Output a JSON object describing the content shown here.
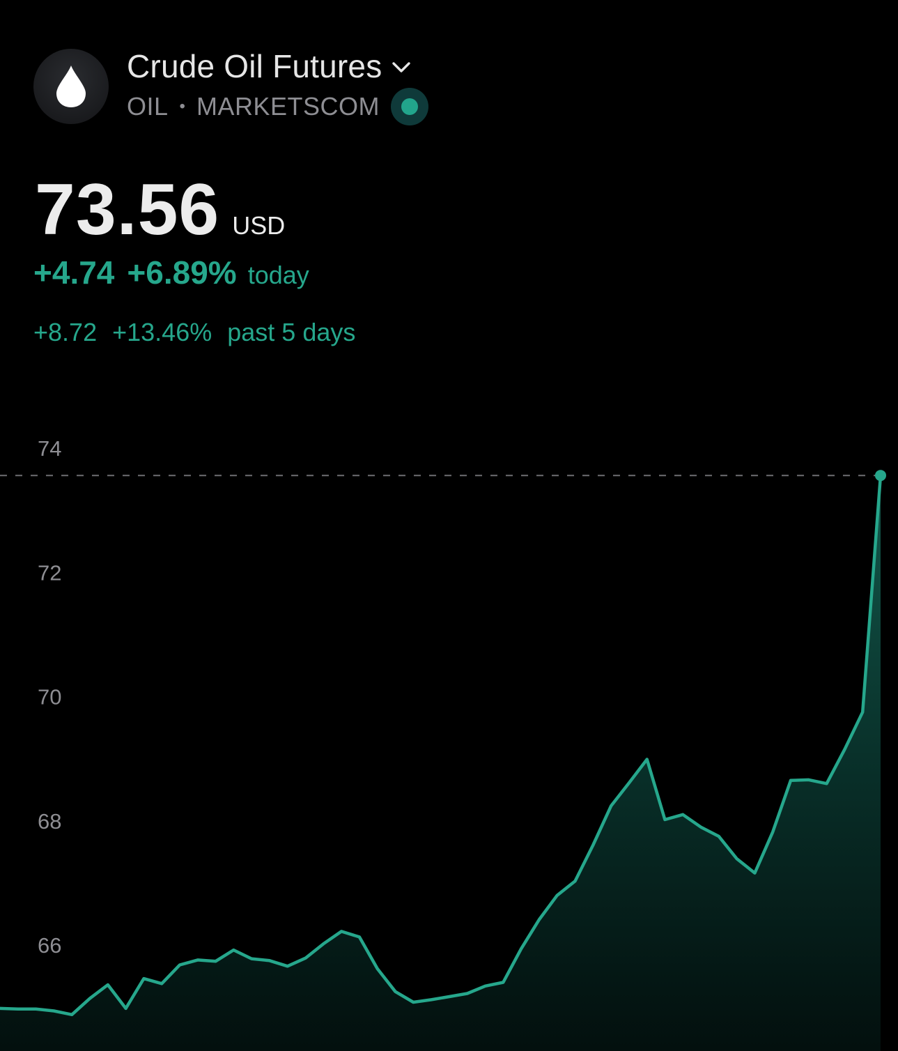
{
  "header": {
    "title": "Crude Oil Futures",
    "symbol": "OIL",
    "separator": "•",
    "exchange": "MARKETSCOM",
    "logo_icon": "oil-drop-icon",
    "status_icon": "market-open-dot-icon",
    "status_color": "#22a58c"
  },
  "quote": {
    "price": "73.56",
    "currency": "USD",
    "change_today": "+4.74",
    "change_today_pct": "+6.89%",
    "today_label": "today",
    "change_5d": "+8.72",
    "change_5d_pct": "+13.46%",
    "five_day_label": "past 5 days"
  },
  "colors": {
    "positive": "#26a78c",
    "background": "#000000"
  },
  "chart_data": {
    "type": "area",
    "ylim": [
      64.2,
      74.6
    ],
    "yticks": [
      74,
      72,
      70,
      68,
      66
    ],
    "current_value": 73.56,
    "values": [
      64.98,
      64.97,
      64.97,
      64.94,
      64.88,
      65.14,
      65.36,
      64.98,
      65.46,
      65.38,
      65.68,
      65.76,
      65.74,
      65.92,
      65.78,
      65.75,
      65.66,
      65.79,
      66.02,
      66.22,
      66.13,
      65.62,
      65.25,
      65.08,
      65.12,
      65.17,
      65.22,
      65.34,
      65.4,
      65.94,
      66.41,
      66.8,
      67.03,
      67.61,
      68.24,
      68.61,
      68.99,
      68.02,
      68.1,
      67.9,
      67.75,
      67.39,
      67.16,
      67.82,
      68.65,
      68.66,
      68.6,
      69.15,
      69.75,
      73.56
    ]
  }
}
